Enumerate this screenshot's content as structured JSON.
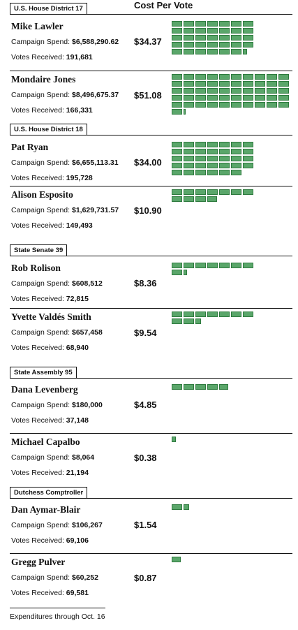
{
  "header": {
    "cost_per_vote_label": "Cost Per Vote"
  },
  "labels": {
    "spend_prefix": "Campaign Spend: ",
    "votes_prefix": "Votes Received: "
  },
  "colors": {
    "bill_fill": "#5aa66a",
    "bill_edge": "#2e7a3e",
    "rule": "#111111"
  },
  "footer": {
    "note": "Expenditures through Oct. 16"
  },
  "chart_data": {
    "type": "pictogram",
    "title": "Cost Per Vote",
    "unit_note": "Each bill icon represents one dollar of campaign spending per vote received",
    "sections": [
      {
        "label": "U.S. House District 17",
        "candidates": [
          {
            "name": "Mike Lawler",
            "spend": "$6,588,290.62",
            "votes": "191,681",
            "cost_label": "$34.37",
            "cost_per_vote": 34.37
          },
          {
            "name": "Mondaire Jones",
            "spend": "$8,496,675.37",
            "votes": "166,331",
            "cost_label": "$51.08",
            "cost_per_vote": 51.08
          }
        ]
      },
      {
        "label": "U.S. House District 18",
        "candidates": [
          {
            "name": "Pat Ryan",
            "spend": "$6,655,113.31",
            "votes": "195,728",
            "cost_label": "$34.00",
            "cost_per_vote": 34.0
          },
          {
            "name": "Alison Esposito",
            "spend": "$1,629,731.57",
            "votes": "149,493",
            "cost_label": "$10.90",
            "cost_per_vote": 10.9
          }
        ]
      },
      {
        "label": "State Senate 39",
        "candidates": [
          {
            "name": "Rob Rolison",
            "spend": "$608,512",
            "votes": "72,815",
            "cost_label": "$8.36",
            "cost_per_vote": 8.36
          },
          {
            "name": "Yvette Valdés Smith",
            "spend": "$657,458",
            "votes": "68,940",
            "cost_label": "$9.54",
            "cost_per_vote": 9.54
          }
        ]
      },
      {
        "label": "State Assembly 95",
        "candidates": [
          {
            "name": "Dana Levenberg",
            "spend": "$180,000",
            "votes": "37,148",
            "cost_label": "$4.85",
            "cost_per_vote": 4.85
          },
          {
            "name": "Michael Capalbo",
            "spend": "$8,064",
            "votes": "21,194",
            "cost_label": "$0.38",
            "cost_per_vote": 0.38
          }
        ]
      },
      {
        "label": "Dutchess Comptroller",
        "candidates": [
          {
            "name": "Dan Aymar-Blair",
            "spend": "$106,267",
            "votes": "69,106",
            "cost_label": "$1.54",
            "cost_per_vote": 1.54
          },
          {
            "name": "Gregg Pulver",
            "spend": "$60,252",
            "votes": "69,581",
            "cost_label": "$0.87",
            "cost_per_vote": 0.87
          }
        ]
      }
    ]
  }
}
